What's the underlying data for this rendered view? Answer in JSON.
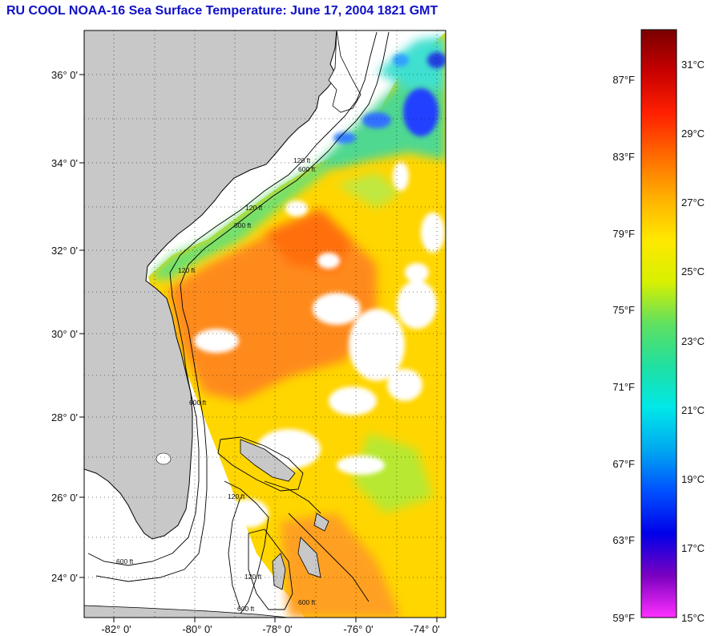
{
  "title": "RU COOL  NOAA-16  Sea Surface Temperature:  June 17, 2004 1821 GMT",
  "map": {
    "lat_labels": [
      "36° 0'",
      "34° 0'",
      "32° 0'",
      "30° 0'",
      "28° 0'",
      "26° 0'",
      "24° 0'"
    ],
    "lon_labels": [
      "-82° 0'",
      "-80° 0'",
      "-78° 0'",
      "-76° 0'",
      "-74° 0'"
    ],
    "contour_labels": [
      "120 ft",
      "600 ft",
      "120 ft",
      "600 ft",
      "120 ft",
      "600 ft",
      "600 ft",
      "120 ft",
      "600 ft",
      "600 ft",
      "120 ft"
    ],
    "land_color": "#c8c8c8",
    "cloud_color": "#ffffff"
  },
  "colorbar": {
    "fahrenheit_labels": [
      "87°F",
      "83°F",
      "79°F",
      "75°F",
      "71°F",
      "67°F",
      "63°F",
      "59°F"
    ],
    "celsius_labels": [
      "31°C",
      "29°C",
      "27°C",
      "25°C",
      "23°C",
      "21°C",
      "19°C",
      "17°C",
      "15°C"
    ],
    "gradient_colors": [
      "#7a0000",
      "#c80000",
      "#ff2000",
      "#ff6a00",
      "#ffb000",
      "#ffe800",
      "#d8f000",
      "#60e060",
      "#20e0a0",
      "#00e8e8",
      "#00a8f0",
      "#0050ff",
      "#0000e8",
      "#7a00c0",
      "#ff30ff"
    ]
  }
}
